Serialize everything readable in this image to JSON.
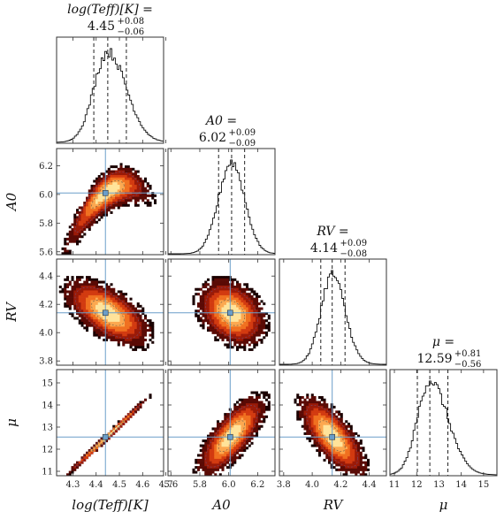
{
  "chart_data": {
    "type": "corner",
    "parameters": [
      {
        "key": "logteff",
        "label": "log(Teff)[K]",
        "title_prefix": "log(Teff)[K] =",
        "median": "4.45",
        "plus": "+0.08",
        "minus": "−0.06",
        "range": [
          4.23,
          4.69
        ],
        "ticks": [
          4.3,
          4.4,
          4.5,
          4.6,
          4.7
        ],
        "tick_labels": [
          "4.3",
          "4.4",
          "4.5",
          "4.6",
          "4.7"
        ],
        "truth": 4.44,
        "quantiles": [
          4.39,
          4.45,
          4.53
        ]
      },
      {
        "key": "a0",
        "label": "A0",
        "title_prefix": "A0 =",
        "median": "6.02",
        "plus": "+0.09",
        "minus": "−0.09",
        "range": [
          5.58,
          6.32
        ],
        "ticks": [
          5.6,
          5.8,
          6.0,
          6.2
        ],
        "tick_labels": [
          "5.6",
          "5.8",
          "6.0",
          "6.2"
        ],
        "truth": 6.01,
        "quantiles": [
          5.93,
          6.02,
          6.11
        ]
      },
      {
        "key": "rv",
        "label": "RV",
        "title_prefix": "RV =",
        "median": "4.14",
        "plus": "+0.09",
        "minus": "−0.08",
        "range": [
          3.77,
          4.52
        ],
        "ticks": [
          3.8,
          4.0,
          4.2,
          4.4
        ],
        "tick_labels": [
          "3.8",
          "4.0",
          "4.2",
          "4.4"
        ],
        "truth": 4.14,
        "quantiles": [
          4.06,
          4.14,
          4.23
        ]
      },
      {
        "key": "mu",
        "label": "μ",
        "title_prefix": "μ =",
        "median": "12.59",
        "plus": "+0.81",
        "minus": "−0.56",
        "range": [
          10.8,
          15.6
        ],
        "ticks": [
          11,
          12,
          13,
          14,
          15
        ],
        "tick_labels": [
          "11",
          "12",
          "13",
          "14",
          "15"
        ],
        "truth": 12.55,
        "quantiles": [
          12.03,
          12.59,
          13.4
        ]
      }
    ],
    "pairs": [
      {
        "row": 1,
        "col": 0,
        "mean": [
          4.45,
          6.02
        ],
        "sd": [
          0.07,
          0.09
        ],
        "rho": 0.8,
        "curved": true
      },
      {
        "row": 2,
        "col": 0,
        "mean": [
          4.45,
          4.14
        ],
        "sd": [
          0.07,
          0.09
        ],
        "rho": -0.6
      },
      {
        "row": 2,
        "col": 1,
        "mean": [
          6.02,
          4.14
        ],
        "sd": [
          0.09,
          0.09
        ],
        "rho": -0.3
      },
      {
        "row": 3,
        "col": 0,
        "mean": [
          4.45,
          12.59
        ],
        "sd": [
          0.07,
          0.7
        ],
        "rho": 0.995
      },
      {
        "row": 3,
        "col": 1,
        "mean": [
          6.02,
          12.59
        ],
        "sd": [
          0.09,
          0.7
        ],
        "rho": 0.75
      },
      {
        "row": 3,
        "col": 2,
        "mean": [
          4.14,
          12.59
        ],
        "sd": [
          0.09,
          0.7
        ],
        "rho": -0.72
      }
    ],
    "grid": false,
    "truth_color": "#6a9ec9",
    "hist_color": "#111111",
    "density_colors": [
      "#1a0000",
      "#5a0a05",
      "#9a1a08",
      "#d23a10",
      "#f07020",
      "#fca850",
      "#ffe39a"
    ]
  }
}
